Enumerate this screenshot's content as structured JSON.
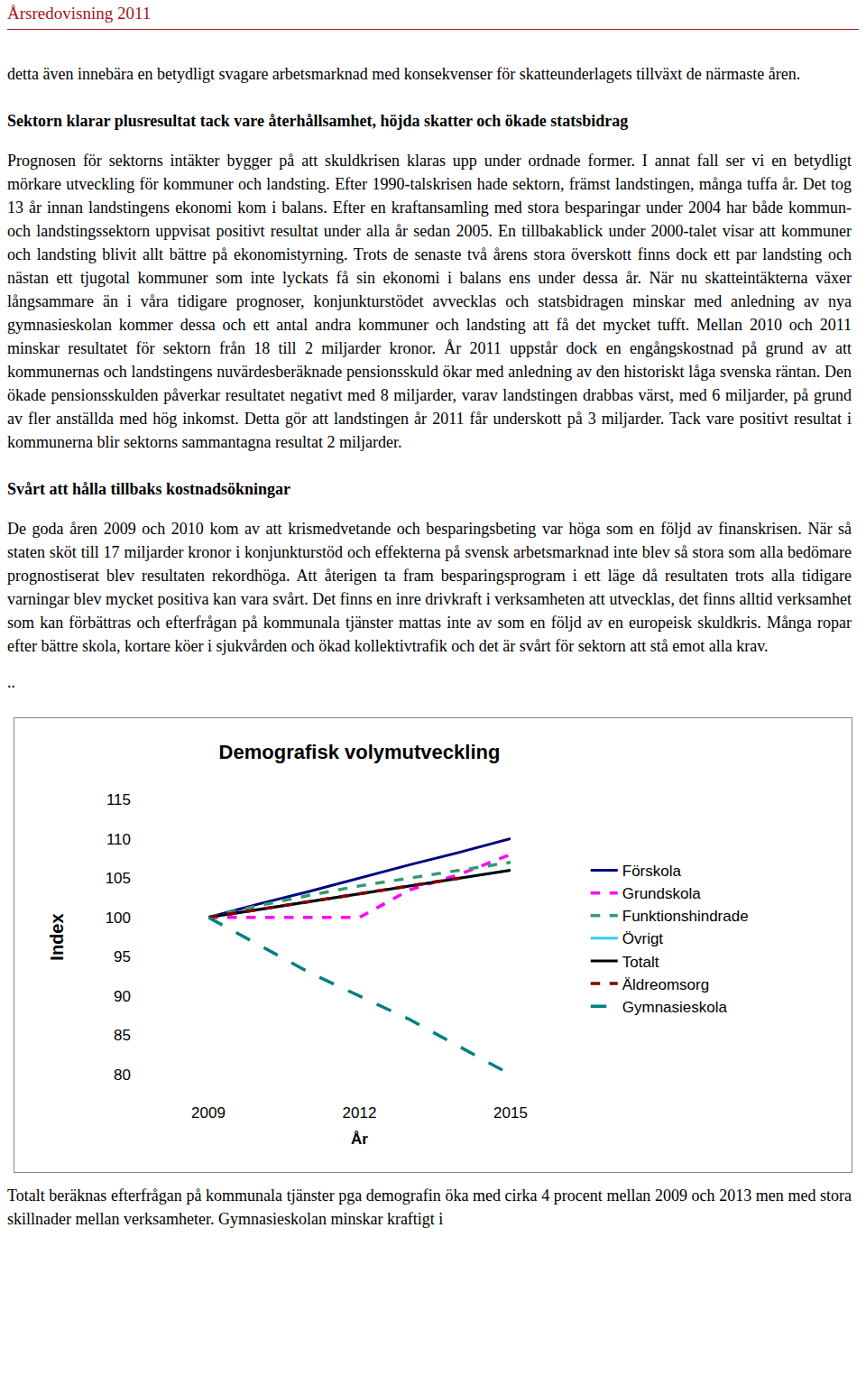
{
  "header": "Årsredovisning 2011",
  "paragraphs": [
    {
      "text": "detta även innebära en betydligt svagare arbetsmarknad med konsekvenser för skatteunderlagets tillväxt de närmaste åren."
    },
    {
      "text": "Sektorn klarar plusresultat tack vare återhållsamhet, höjda skatter och ökade statsbidrag",
      "bold": true
    },
    {
      "text": "Prognosen för sektorns intäkter bygger på att skuldkrisen klaras upp under ordnade former. I annat fall ser vi en betydligt mörkare utveckling för kommuner och landsting. Efter 1990-talskrisen hade sektorn, främst landstingen, många tuffa år. Det tog 13 år innan landstingens ekonomi kom i balans. Efter en kraftansamling med stora besparingar under 2004 har både kommun- och landstingssektorn uppvisat positivt resultat under alla år sedan 2005. En tillbakablick under 2000-talet visar att kommuner och landsting blivit allt bättre på ekonomistyrning. Trots de senaste två årens stora överskott finns dock ett par landsting och nästan ett tjugotal kommuner som inte lyckats få sin ekonomi i balans ens under dessa år. När nu skatteintäkterna växer långsammare än i våra tidigare prognoser, konjunkturstödet avvecklas och statsbidragen minskar med anledning av nya gymnasieskolan kommer dessa och ett antal andra kommuner och landsting att få det mycket tufft. Mellan 2010 och 2011 minskar resultatet för sektorn från 18 till 2 miljarder kronor. År 2011 uppstår dock en engångskostnad på grund av att kommunernas och landstingens nuvärdesberäknade pensionsskuld ökar med anledning av den historiskt låga svenska räntan. Den ökade pensionsskulden påverkar resultatet negativt med 8 miljarder, varav landstingen drabbas värst, med 6 miljarder, på grund av fler anställda med hög inkomst. Detta gör att landstingen år 2011 får underskott på 3 miljarder. Tack vare positivt resultat i kommunerna blir sektorns sammantagna resultat 2 miljarder."
    },
    {
      "text": "Svårt att hålla tillbaks kostnadsökningar",
      "bold": true
    },
    {
      "text": "De goda åren 2009 och 2010 kom av att krismedvetande och besparingsbeting var höga som en följd av finanskrisen. När så staten sköt till 17 miljarder kronor i konjunkturstöd och effekterna på svensk arbetsmarknad inte blev så stora som alla bedömare prognostiserat blev resultaten rekordhöga. Att återigen ta fram besparingsprogram i ett läge då resultaten trots alla tidigare varningar blev mycket positiva kan vara svårt. Det finns en inre drivkraft i verksamheten att utvecklas, det finns alltid verksamhet som kan förbättras och efterfrågan på kommunala tjänster mattas inte av som en följd av en europeisk skuldkris. Många ropar efter bättre skola, kortare köer i sjukvården och ökad kollektivtrafik och det är svårt för sektorn att stå emot alla krav.",
      "tight": true
    },
    {
      "text": ".."
    }
  ],
  "chart_data": {
    "type": "line",
    "title": "Demografisk volymutveckling",
    "x_label": "År",
    "y_label": "Index",
    "x": [
      2009,
      2010,
      2011,
      2012,
      2013,
      2014,
      2015
    ],
    "xlim": [
      2009,
      2015
    ],
    "xticks": [
      2009,
      2012,
      2015
    ],
    "ylim": [
      80,
      115
    ],
    "yticks": [
      80,
      85,
      90,
      95,
      100,
      105,
      110,
      115
    ],
    "grid": false,
    "legend": "right",
    "series": [
      {
        "name": "Förskola",
        "color": "#000080",
        "line_style": "solid",
        "values": [
          100,
          101.7,
          103.3,
          105,
          106.7,
          108.3,
          110
        ]
      },
      {
        "name": "Grundskola",
        "color": "#ff00ff",
        "line_style": "dash",
        "values": [
          100,
          100,
          100,
          100,
          103.5,
          105.5,
          108
        ]
      },
      {
        "name": "Funktionshindrade",
        "color": "#339977",
        "line_style": "dash",
        "values": [
          100,
          101.5,
          102.8,
          104,
          105,
          106,
          107
        ]
      },
      {
        "name": "Övrigt",
        "color": "#33ccff",
        "line_style": "solid",
        "values": [
          100,
          101,
          102,
          103,
          104,
          105,
          106
        ]
      },
      {
        "name": "Totalt",
        "color": "#000000",
        "line_style": "solid",
        "values": [
          100,
          101,
          102,
          103,
          104,
          105,
          106
        ]
      },
      {
        "name": "Äldreomsorg",
        "color": "#800000",
        "line_style": "dash",
        "values": [
          100,
          101,
          102,
          103,
          104,
          105,
          null
        ]
      },
      {
        "name": "Gymnasieskola",
        "color": "#008080",
        "line_style": "longdash",
        "values": [
          100,
          96.5,
          93,
          90,
          87,
          83.5,
          80
        ]
      }
    ]
  },
  "caption": "Totalt beräknas efterfrågan på kommunala tjänster pga demografin öka med cirka 4 procent mellan 2009 och 2013 men med stora skillnader mellan verksamheter. Gymnasieskolan minskar kraftigt i"
}
